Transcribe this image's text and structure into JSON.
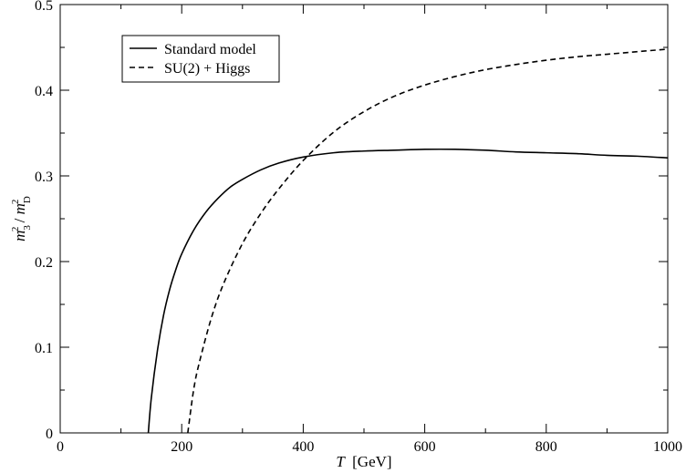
{
  "chart_data": {
    "type": "line",
    "xlabel_var": "T",
    "xlabel_unit": "[GeV]",
    "ylabel": "m₃² / m_D²",
    "xlim": [
      0,
      1000
    ],
    "ylim": [
      0,
      0.5
    ],
    "x_ticks": [
      0,
      200,
      400,
      600,
      800,
      1000
    ],
    "x_tick_labels": [
      "0",
      "200",
      "400",
      "600",
      "800",
      "1000"
    ],
    "y_ticks": [
      0,
      0.1,
      0.2,
      0.3,
      0.4,
      0.5
    ],
    "y_tick_labels": [
      "0",
      "0.1",
      "0.2",
      "0.3",
      "0.4",
      "0.5"
    ],
    "grid": false,
    "legend_position": "top-left",
    "series": [
      {
        "name": "Standard model",
        "style": "solid",
        "x": [
          145,
          150,
          160,
          170,
          180,
          190,
          200,
          220,
          240,
          260,
          280,
          300,
          330,
          360,
          400,
          450,
          500,
          550,
          600,
          650,
          700,
          750,
          800,
          850,
          900,
          950,
          1000
        ],
        "y": [
          0.0,
          0.041,
          0.096,
          0.137,
          0.167,
          0.19,
          0.209,
          0.237,
          0.258,
          0.274,
          0.287,
          0.296,
          0.307,
          0.315,
          0.322,
          0.327,
          0.329,
          0.33,
          0.331,
          0.331,
          0.33,
          0.328,
          0.327,
          0.326,
          0.324,
          0.323,
          0.321
        ]
      },
      {
        "name": "SU(2) + Higgs",
        "style": "dashed",
        "x": [
          210,
          220,
          230,
          250,
          270,
          300,
          330,
          360,
          400,
          450,
          500,
          550,
          600,
          650,
          700,
          750,
          800,
          850,
          900,
          950,
          1000
        ],
        "y": [
          0.0,
          0.052,
          0.085,
          0.137,
          0.176,
          0.221,
          0.256,
          0.285,
          0.318,
          0.351,
          0.375,
          0.393,
          0.406,
          0.416,
          0.424,
          0.43,
          0.435,
          0.439,
          0.442,
          0.445,
          0.448
        ]
      }
    ]
  }
}
